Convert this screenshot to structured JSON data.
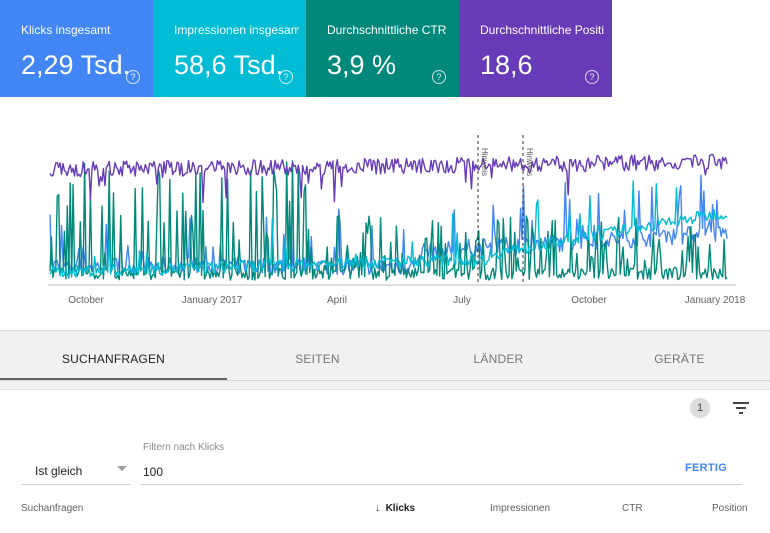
{
  "metrics": [
    {
      "label": "Klicks insgesamt",
      "value": "2,29 Tsd.",
      "color": "#4285f4"
    },
    {
      "label": "Impressionen insgesamt",
      "value": "58,6 Tsd.",
      "color": "#00bcd4"
    },
    {
      "label": "Durchschnittliche CTR",
      "value": "3,9 %",
      "color": "#00897b"
    },
    {
      "label": "Durchschnittliche Positi…",
      "value": "18,6",
      "color": "#673ab7"
    }
  ],
  "help_glyph": "?",
  "chart": {
    "x_ticks": [
      "October",
      "January 2017",
      "April",
      "July",
      "October",
      "January 2018"
    ],
    "annotations": [
      "Hinweis",
      "Hinweis"
    ]
  },
  "tabs": [
    "SUCHANFRAGEN",
    "SEITEN",
    "LÄNDER",
    "GERÄTE"
  ],
  "filter": {
    "count": "1",
    "label": "Filtern nach Klicks",
    "operator": "Ist gleich",
    "value": "100",
    "done": "FERTIG"
  },
  "table": {
    "sort_arrow": "↓",
    "columns": [
      "Suchanfragen",
      "Klicks",
      "Impressionen",
      "CTR",
      "Position"
    ]
  }
}
